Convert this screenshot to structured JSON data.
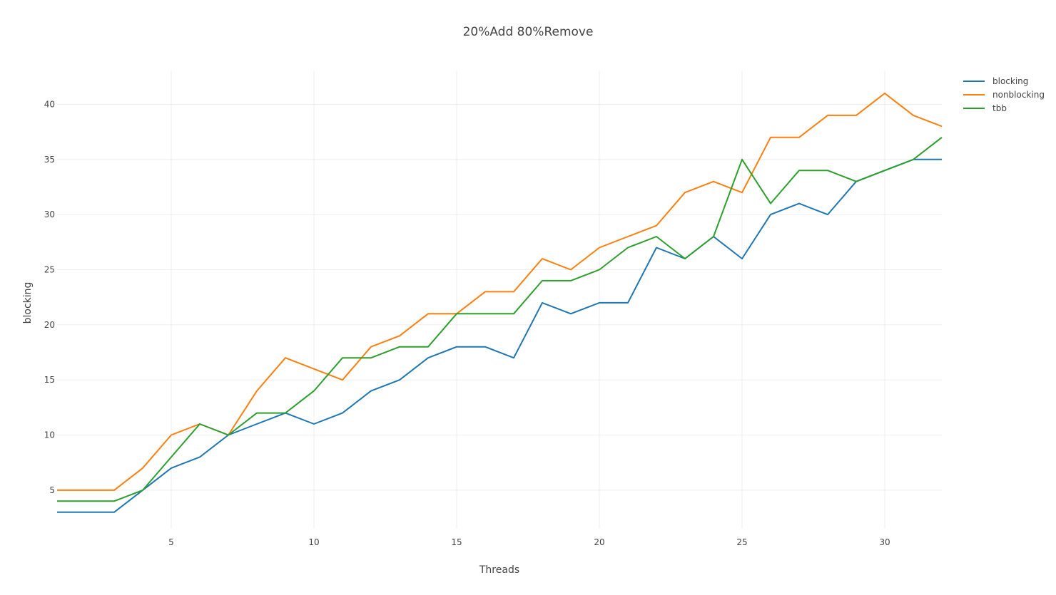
{
  "chart_data": {
    "type": "line",
    "title": "20%Add 80%Remove",
    "xlabel": "Threads",
    "ylabel": "blocking",
    "xlim": [
      1,
      32
    ],
    "ylim": [
      1.5,
      43
    ],
    "x_ticks": [
      5,
      10,
      15,
      20,
      25,
      30
    ],
    "y_ticks": [
      5,
      10,
      15,
      20,
      25,
      30,
      35,
      40
    ],
    "grid": true,
    "legend_position": "top-right",
    "x": [
      1,
      2,
      3,
      4,
      5,
      6,
      7,
      8,
      9,
      10,
      11,
      12,
      13,
      14,
      15,
      16,
      17,
      18,
      19,
      20,
      21,
      22,
      23,
      24,
      25,
      26,
      27,
      28,
      29,
      30,
      31,
      32
    ],
    "series": [
      {
        "name": "blocking",
        "color": "#1f77b4",
        "values": [
          3,
          3,
          3,
          5,
          7,
          8,
          10,
          11,
          12,
          11,
          12,
          14,
          15,
          17,
          18,
          18,
          17,
          22,
          21,
          22,
          22,
          27,
          26,
          28,
          26,
          30,
          31,
          30,
          33,
          34,
          35,
          35
        ]
      },
      {
        "name": " nonblocking",
        "color": "#ff7f0e",
        "values": [
          5,
          5,
          5,
          7,
          10,
          11,
          10,
          14,
          17,
          16,
          15,
          18,
          19,
          21,
          21,
          23,
          23,
          26,
          25,
          27,
          28,
          29,
          32,
          33,
          32,
          37,
          37,
          39,
          39,
          41,
          39,
          38
        ]
      },
      {
        "name": "tbb",
        "color": "#2ca02c",
        "values": [
          4,
          4,
          4,
          5,
          8,
          11,
          10,
          12,
          12,
          14,
          17,
          17,
          18,
          18,
          21,
          21,
          21,
          24,
          24,
          25,
          27,
          28,
          26,
          28,
          35,
          31,
          34,
          34,
          33,
          34,
          35,
          37
        ]
      }
    ]
  },
  "colors": {
    "grid": "#eeeeee",
    "text": "#444444"
  }
}
